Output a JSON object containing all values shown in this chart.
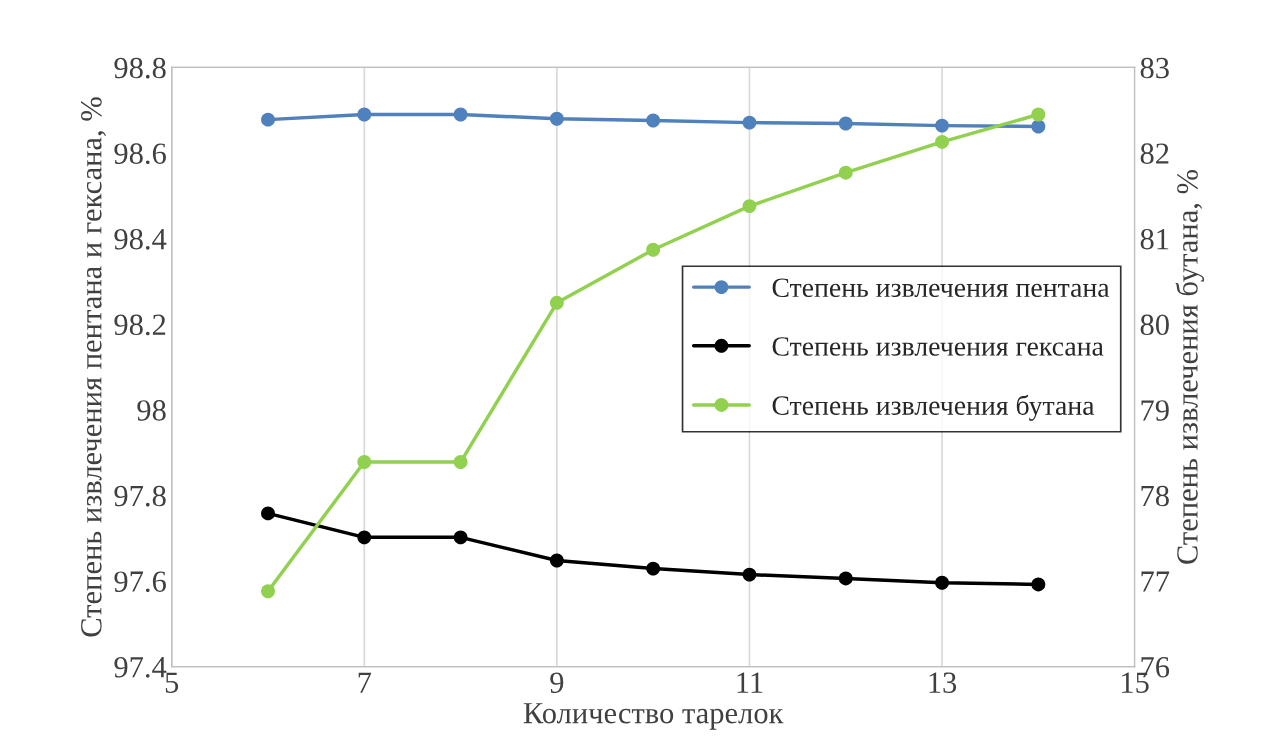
{
  "chart_data": {
    "type": "line",
    "xlabel": "Количество тарелок",
    "ylabel": "Степень извлечения пентана и гексана, %",
    "y2label": "Степень извлечения бутана, %",
    "x": [
      6,
      7,
      8,
      9,
      10,
      11,
      12,
      13,
      14
    ],
    "series": [
      {
        "name": "Степень извлечения пентана",
        "color": "#4f81bd",
        "values": [
          98.678,
          98.69,
          98.69,
          98.68,
          98.676,
          98.671,
          98.669,
          98.664,
          98.662
        ]
      },
      {
        "name": "Степень извлечения гексана",
        "color": "#000000",
        "values": [
          97.758,
          97.702,
          97.702,
          97.648,
          97.629,
          97.615,
          97.606,
          97.596,
          97.592
        ]
      },
      {
        "name": "Степень извлечения бутана",
        "color": "#92d050",
        "axis": "y2",
        "values": [
          76.88,
          78.39,
          78.39,
          80.25,
          80.87,
          81.38,
          81.77,
          82.13,
          82.45
        ]
      }
    ],
    "xlim": [
      5,
      15
    ],
    "xticks": [
      5,
      7,
      9,
      11,
      13,
      15
    ],
    "ylim": [
      97.4,
      98.8
    ],
    "yticks": [
      97.4,
      97.6,
      97.8,
      98,
      98.2,
      98.4,
      98.6,
      98.8
    ],
    "y2lim": [
      76,
      83
    ],
    "y2ticks": [
      76,
      77,
      78,
      79,
      80,
      81,
      82,
      83
    ],
    "grid": "x",
    "legend": "right",
    "marker": "circle",
    "line_style": "solid"
  }
}
